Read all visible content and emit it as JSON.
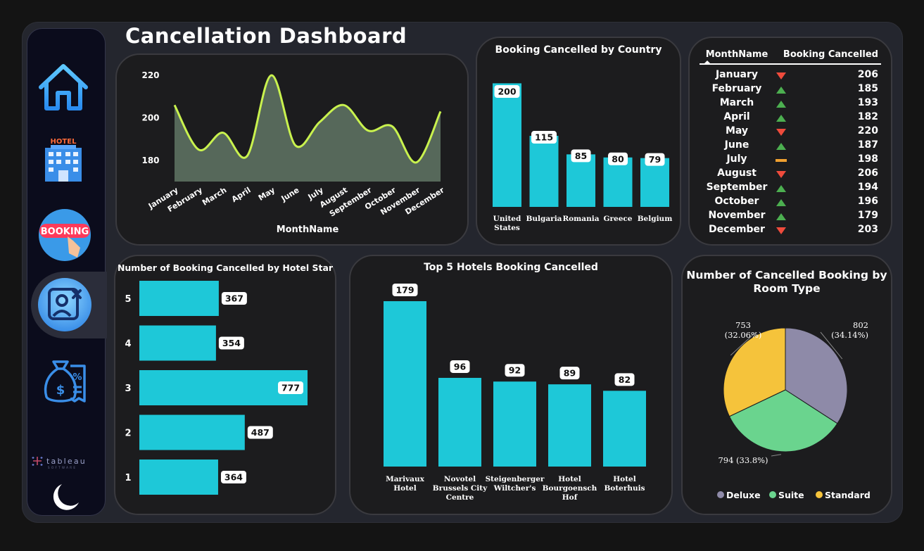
{
  "title": "Cancellation Dashboard",
  "sidebar": {
    "items": [
      {
        "name": "home",
        "icon": "home-icon"
      },
      {
        "name": "hotel",
        "icon": "hotel-icon",
        "label": "HOTEL"
      },
      {
        "name": "booking",
        "icon": "booking-icon",
        "label": "BOOKING"
      },
      {
        "name": "cancellation",
        "icon": "cancel-user-icon",
        "active": true
      },
      {
        "name": "finance",
        "icon": "money-bag-receipt-icon"
      }
    ],
    "brand": "tableau",
    "brand_sub": "SOFTWARE",
    "theme_icon": "moon-icon"
  },
  "colors": {
    "bar": "#1ec8d8",
    "line": "#c9f24e",
    "area": "#56685a",
    "down": "#ef4b3c",
    "up": "#4caf50",
    "flat": "#f0a030"
  },
  "line_chart": {
    "chart_data": {
      "type": "area",
      "categories": [
        "January",
        "February",
        "March",
        "April",
        "May",
        "June",
        "July",
        "August",
        "September",
        "October",
        "November",
        "December"
      ],
      "values": [
        206,
        185,
        193,
        182,
        220,
        187,
        198,
        206,
        194,
        196,
        179,
        203
      ],
      "xlabel": "MonthName",
      "yticks": [
        "220",
        "200",
        "180"
      ],
      "ylim": [
        170,
        223
      ]
    }
  },
  "country_chart": {
    "chart_data": {
      "type": "bar",
      "title": "Booking Cancelled by Country",
      "categories": [
        "United States",
        "Bulgaria",
        "Romania",
        "Greece",
        "Belgium"
      ],
      "values": [
        200,
        115,
        85,
        80,
        79
      ],
      "ylim": [
        0,
        205
      ]
    }
  },
  "table": {
    "headers": [
      "MonthName",
      "Booking Cancelled"
    ],
    "rows": [
      {
        "month": "January",
        "value": "206",
        "trend": "down"
      },
      {
        "month": "February",
        "value": "185",
        "trend": "up"
      },
      {
        "month": "March",
        "value": "193",
        "trend": "up"
      },
      {
        "month": "April",
        "value": "182",
        "trend": "up"
      },
      {
        "month": "May",
        "value": "220",
        "trend": "down"
      },
      {
        "month": "June",
        "value": "187",
        "trend": "up"
      },
      {
        "month": "July",
        "value": "198",
        "trend": "flat"
      },
      {
        "month": "August",
        "value": "206",
        "trend": "down"
      },
      {
        "month": "September",
        "value": "194",
        "trend": "up"
      },
      {
        "month": "October",
        "value": "196",
        "trend": "up"
      },
      {
        "month": "November",
        "value": "179",
        "trend": "up"
      },
      {
        "month": "December",
        "value": "203",
        "trend": "down"
      }
    ]
  },
  "star_chart": {
    "chart_data": {
      "type": "bar",
      "orientation": "horizontal",
      "title": "Number of Booking Cancelled by Hotel Star",
      "categories": [
        "5",
        "4",
        "3",
        "2",
        "1"
      ],
      "values": [
        367,
        354,
        777,
        487,
        364
      ],
      "xlim": [
        0,
        777
      ]
    }
  },
  "hotel_chart": {
    "chart_data": {
      "type": "bar",
      "title": "Top 5 Hotels Booking Cancelled",
      "categories": [
        [
          "Marivaux",
          "Hotel"
        ],
        [
          "Novotel",
          "Brussels City",
          "Centre"
        ],
        [
          "Steigenberger",
          "Wiltcher's"
        ],
        [
          "Hotel",
          "Bourgoensch",
          "Hof"
        ],
        [
          "Hotel",
          "Boterhuis"
        ]
      ],
      "values": [
        179,
        96,
        92,
        89,
        82
      ],
      "ylim": [
        0,
        179
      ]
    }
  },
  "room_chart": {
    "chart_data": {
      "type": "pie",
      "title_lines": [
        "Number of Cancelled Booking by",
        "Room Type"
      ],
      "slices": [
        {
          "name": "Deluxe",
          "value": 802,
          "label": [
            "802",
            "(34.14%)"
          ],
          "color": "#8e8aa8"
        },
        {
          "name": "Suite",
          "value": 794,
          "label": [
            "794 (33.8%)"
          ],
          "color": "#6ad48e"
        },
        {
          "name": "Standard",
          "value": 753,
          "label": [
            "753",
            "(32.06%)"
          ],
          "color": "#f5c33b"
        }
      ],
      "legend_position": "bottom"
    }
  }
}
